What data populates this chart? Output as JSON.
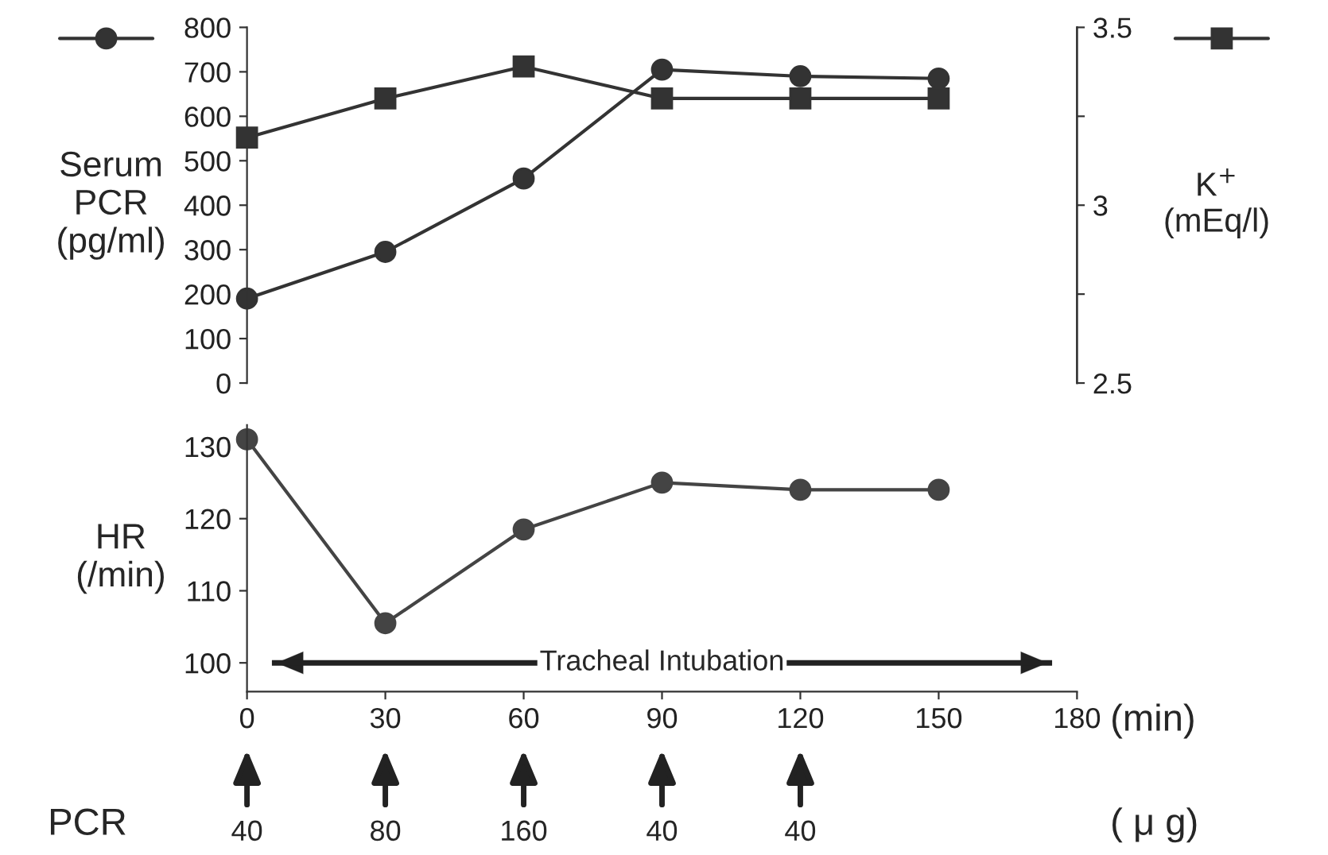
{
  "chart_data": [
    {
      "type": "line",
      "x": [
        0,
        30,
        60,
        90,
        120,
        150
      ],
      "xlim": [
        0,
        180
      ],
      "ylim": [
        0,
        800
      ],
      "yticks": [
        0,
        100,
        200,
        300,
        400,
        500,
        600,
        700,
        800
      ],
      "y2lim": [
        2.5,
        3.5
      ],
      "y2ticks": [
        2.5,
        {
          "value": 2.75,
          "label": null
        },
        3,
        {
          "value": 3.25,
          "label": null
        },
        3.5
      ],
      "ylabel": "Serum\nPCR\n(pg/ml)",
      "y2label": "K$^{+}$\n(mEq/l)",
      "tick_labels": "y",
      "grid": false,
      "legend": false,
      "series": [
        {
          "color": "#333333",
          "marker": "circle",
          "values": [
            190,
            295,
            460,
            705,
            690,
            685
          ]
        },
        {
          "color": "#333333",
          "marker": "square",
          "axis": "y2",
          "values": [
            3.19,
            3.3,
            3.39,
            3.3,
            3.3,
            3.3
          ]
        }
      ]
    },
    {
      "type": "line",
      "x": [
        0,
        30,
        60,
        90,
        120,
        150
      ],
      "xlim": [
        0,
        180
      ],
      "xticks": [
        0,
        30,
        60,
        90,
        120,
        150,
        180
      ],
      "ylim": [
        96,
        133
      ],
      "yticks": [
        100,
        110,
        120,
        130
      ],
      "ylabel": "HR\n(/min)",
      "xlabel": "(min)",
      "grid": false,
      "legend": false,
      "series": [
        {
          "color": "#444444",
          "marker": "circle",
          "values": [
            131,
            105.5,
            118.5,
            125,
            124,
            124
          ]
        }
      ],
      "ref_lines": [
        {
          "axis": "y",
          "value": 100,
          "label": "Tracheal Intubation",
          "color": "#222222",
          "line_style": "solid"
        }
      ],
      "annotations": [
        "PCR",
        {
          "text": "40",
          "x": 0
        },
        {
          "text": "80",
          "x": 30
        },
        {
          "text": "160",
          "x": 60
        },
        {
          "text": "40",
          "x": 90
        },
        {
          "text": "40",
          "x": 120
        },
        "( μ g)"
      ]
    }
  ]
}
